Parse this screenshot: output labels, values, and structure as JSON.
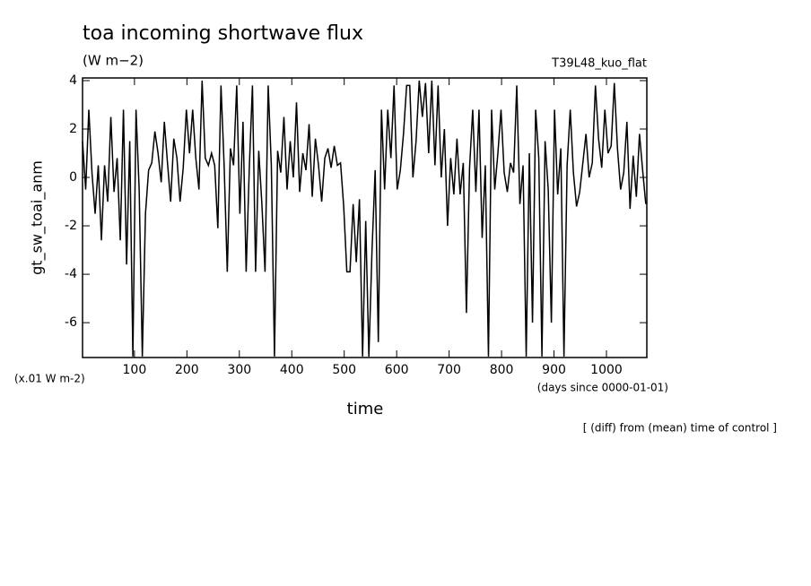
{
  "chart_data": {
    "type": "line",
    "title": "toa incoming shortwave flux",
    "subtitle": "(W m−2)",
    "annotation": "T39L48_kuo_flat",
    "ylabel": "gt_sw_toai_anm",
    "yunit": "(x.01 W m-2)",
    "xlabel": "time",
    "xunit": "(days since 0000-01-01)",
    "footnote": "[ (diff) from (mean) time of control ]",
    "xlim": [
      1,
      1077
    ],
    "ylim": [
      -7.44,
      4.11
    ],
    "xticks": [
      100,
      200,
      300,
      400,
      500,
      600,
      700,
      800,
      900,
      1000
    ],
    "yticks": [
      -6,
      -4,
      -2,
      0,
      2,
      4
    ],
    "x": [
      1,
      7,
      13,
      19,
      25,
      31,
      37,
      43,
      49,
      55,
      61,
      67,
      73,
      79,
      85,
      91,
      97,
      103,
      109,
      115,
      121,
      127,
      133,
      139,
      145,
      151,
      157,
      163,
      169,
      175,
      181,
      187,
      193,
      199,
      205,
      211,
      217,
      223,
      229,
      235,
      241,
      247,
      253,
      259,
      265,
      271,
      277,
      283,
      289,
      295,
      301,
      307,
      313,
      319,
      325,
      331,
      337,
      343,
      349,
      355,
      361,
      367,
      373,
      379,
      385,
      391,
      397,
      403,
      409,
      415,
      421,
      427,
      433,
      439,
      445,
      451,
      457,
      463,
      469,
      475,
      481,
      487,
      493,
      499,
      505,
      511,
      517,
      523,
      529,
      535,
      541,
      547,
      553,
      559,
      565,
      571,
      577,
      583,
      589,
      595,
      601,
      607,
      613,
      619,
      625,
      631,
      637,
      643,
      649,
      655,
      661,
      667,
      673,
      679,
      685,
      691,
      697,
      703,
      709,
      715,
      721,
      727,
      733,
      739,
      745,
      751,
      757,
      763,
      769,
      775,
      781,
      787,
      793,
      799,
      805,
      811,
      817,
      823,
      829,
      835,
      841,
      847,
      853,
      859,
      865,
      871,
      877,
      883,
      889,
      895,
      901,
      907,
      913,
      919,
      925,
      931,
      937,
      943,
      949,
      955,
      961,
      967,
      973,
      979,
      985,
      991,
      997,
      1003,
      1009,
      1015,
      1021,
      1027,
      1033,
      1039,
      1045,
      1051,
      1057,
      1063,
      1069,
      1075
    ],
    "series": [
      {
        "color": "#000000",
        "values": [
          1.5,
          -0.5,
          2.8,
          0.2,
          -1.5,
          0.5,
          -2.6,
          0.5,
          -1,
          2.5,
          -0.6,
          0.8,
          -2.6,
          2.8,
          -3.6,
          1.5,
          -7.4,
          2.8,
          -0.5,
          -7.4,
          -1.5,
          0.3,
          0.6,
          1.9,
          1,
          -0.2,
          2.3,
          0.6,
          -1,
          1.6,
          0.8,
          -1,
          0.4,
          2.8,
          1,
          2.8,
          0.8,
          -0.5,
          4,
          0.8,
          0.5,
          1,
          0.5,
          -2.1,
          3.8,
          0.5,
          -3.9,
          1.2,
          0.5,
          3.8,
          -1.5,
          2.3,
          -3.9,
          0.4,
          3.8,
          -3.9,
          1.1,
          -1.1,
          -3.9,
          3.8,
          0.5,
          -7.4,
          1.1,
          0.2,
          2.5,
          -0.5,
          1.5,
          0,
          3.1,
          -0.6,
          1,
          0.3,
          2.2,
          -0.8,
          1.6,
          0.5,
          -1,
          0.8,
          1.2,
          0.4,
          1.3,
          0.5,
          0.6,
          -1.2,
          -3.9,
          -3.9,
          -1.1,
          -3.5,
          -0.9,
          -7.4,
          -1.8,
          -7.4,
          -3,
          0.3,
          -6.8,
          2.8,
          -0.5,
          2.8,
          0.8,
          3.8,
          -0.5,
          0.3,
          1.8,
          3.8,
          3.8,
          0,
          1.5,
          4,
          2.5,
          3.9,
          1,
          4,
          0.5,
          3.8,
          0,
          2,
          -2,
          0.8,
          -0.7,
          1.6,
          -0.7,
          0.6,
          -5.6,
          0.4,
          2.8,
          -0.6,
          2.8,
          -2.5,
          0.5,
          -7.4,
          2.8,
          -0.5,
          1,
          2.8,
          0.2,
          -0.6,
          0.6,
          0.2,
          3.8,
          -1.1,
          0.5,
          -7.4,
          1,
          -6,
          2.8,
          0.8,
          -7.4,
          1.5,
          -0.5,
          -6,
          2.8,
          -0.7,
          1.2,
          -7.4,
          0.5,
          2.8,
          0.2,
          -1.2,
          -0.6,
          0.6,
          1.8,
          0,
          0.6,
          3.8,
          1.6,
          0.4,
          2.8,
          1,
          1.3,
          3.9,
          1.2,
          -0.5,
          0.2,
          2.3,
          -1.3,
          0.9,
          -0.8,
          1.8,
          0.3,
          -1.1
        ]
      }
    ]
  }
}
